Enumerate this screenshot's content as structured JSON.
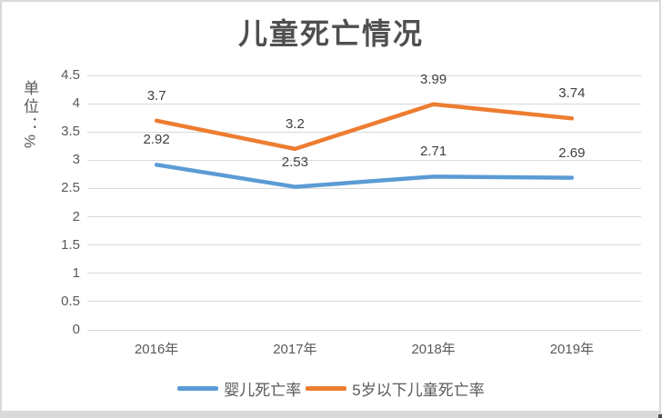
{
  "chart_data": {
    "type": "line",
    "title": "儿童死亡情况",
    "ylabel": "单位：%",
    "xlabel": "",
    "categories": [
      "2016年",
      "2017年",
      "2018年",
      "2019年"
    ],
    "series": [
      {
        "name": "婴儿死亡率",
        "color": "#5B9BD5",
        "values": [
          2.92,
          2.53,
          2.71,
          2.69
        ]
      },
      {
        "name": "5岁以下儿童死亡率",
        "color": "#ED7D31",
        "values": [
          3.7,
          3.2,
          3.99,
          3.74
        ]
      }
    ],
    "ylim": [
      0,
      4.5
    ],
    "yticks": [
      0,
      0.5,
      1,
      1.5,
      2,
      2.5,
      3,
      3.5,
      4,
      4.5
    ],
    "grid": true,
    "data_labels": true,
    "legend_position": "bottom",
    "colors": {
      "gridline": "#D9D9D9",
      "frame_border": "#D9D9D9",
      "title_text": "#4f4f4f",
      "axis_text": "#595959",
      "data_label_text": "#404040"
    }
  }
}
